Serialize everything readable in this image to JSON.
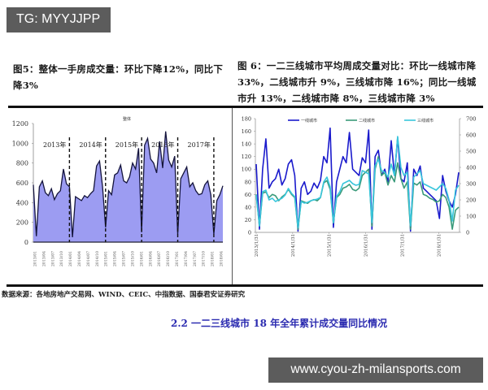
{
  "watermarks": {
    "top_left": "TG: MYYJJPP",
    "bottom_right": "www.cyou-zh-milansports.com"
  },
  "figure5": {
    "title": "图5：整体一手房成交量：环比下降12%，同比下降3%"
  },
  "figure6": {
    "title": "图 6：一二三线城市平均周成交量对比：环比一线城市降33%，二线城市升 9%，三线城市降 16%；同比一线城市升 13%，二线城市降 8%，三线城市降 3%"
  },
  "source_note": "数据来源：各地房地产交易网、WIND、CEIC、中指数据、国泰君安证券研究",
  "section_heading": "2.2 一二三线城市 18 年全年累计成交量同比情况",
  "colors": {
    "fig5_fill": "#9c9cf2",
    "fig5_line": "#14143c",
    "tier1": "#1a1acc",
    "tier2": "#3a9a7a",
    "tier3": "#39c6dc",
    "heading_blue": "#2b2bb0",
    "watermark_bg": "#5c5c5c"
  },
  "chart_data": [
    {
      "type": "area",
      "title": "整体",
      "ylim": [
        0,
        1200
      ],
      "yticks": [
        0,
        200,
        400,
        600,
        800,
        1000,
        1200
      ],
      "xticks": [
        "2013/01",
        "2013/04",
        "2013/07",
        "2013/10",
        "2014/01",
        "2014/04",
        "2014/07",
        "2014/10",
        "2015/01",
        "2015/04",
        "2015/07",
        "2015/10",
        "2016/01",
        "2016/04",
        "2016/07",
        "2016/10",
        "2017/01",
        "2017/04",
        "2017/07",
        "2017/10",
        "2018/01",
        "2018/04"
      ],
      "year_annotations": [
        "2013年",
        "2014年",
        "2015年",
        "2016年",
        "2017年"
      ],
      "year_dividers": [
        "2014/01",
        "2015/01",
        "2016/01",
        "2017/01",
        "2018/01"
      ],
      "x": [
        "2013/01",
        "2013/02",
        "2013/03",
        "2013/04",
        "2013/05",
        "2013/06",
        "2013/07",
        "2013/08",
        "2013/09",
        "2013/10",
        "2013/11",
        "2013/12",
        "2014/01",
        "2014/02",
        "2014/03",
        "2014/04",
        "2014/05",
        "2014/06",
        "2014/07",
        "2014/08",
        "2014/09",
        "2014/10",
        "2014/11",
        "2014/12",
        "2015/01",
        "2015/02",
        "2015/03",
        "2015/04",
        "2015/05",
        "2015/06",
        "2015/07",
        "2015/08",
        "2015/09",
        "2015/10",
        "2015/11",
        "2015/12",
        "2016/01",
        "2016/02",
        "2016/03",
        "2016/04",
        "2016/05",
        "2016/06",
        "2016/07",
        "2016/08",
        "2016/09",
        "2016/10",
        "2016/11",
        "2016/12",
        "2017/01",
        "2017/02",
        "2017/03",
        "2017/04",
        "2017/05",
        "2017/06",
        "2017/07",
        "2017/08",
        "2017/09",
        "2017/10",
        "2017/11",
        "2017/12",
        "2018/01",
        "2018/02",
        "2018/03",
        "2018/04"
      ],
      "values": [
        580,
        60,
        560,
        620,
        500,
        470,
        540,
        430,
        490,
        520,
        740,
        590,
        560,
        50,
        460,
        440,
        420,
        470,
        450,
        490,
        520,
        770,
        820,
        560,
        150,
        520,
        480,
        680,
        700,
        780,
        620,
        600,
        660,
        800,
        740,
        950,
        100,
        980,
        1050,
        840,
        800,
        700,
        1020,
        750,
        1120,
        830,
        760,
        870,
        80,
        640,
        700,
        760,
        560,
        600,
        520,
        480,
        490,
        580,
        620,
        480,
        80,
        420,
        480,
        570
      ]
    },
    {
      "type": "line",
      "title": "",
      "y_left": {
        "ylim": [
          0,
          180
        ],
        "ticks": [
          0,
          20,
          40,
          60,
          80,
          100,
          120,
          140,
          160,
          180
        ]
      },
      "y_right": {
        "ylim": [
          0,
          700
        ],
        "ticks": [
          0,
          100,
          200,
          300,
          400,
          500,
          600,
          700
        ]
      },
      "xticks": [
        "2013/1/31",
        "2014/1/31",
        "2015/1/31",
        "2016/1/31",
        "2017/1/31",
        "2018/1/31"
      ],
      "legend": [
        "一线城市",
        "二线城市",
        "三线城市"
      ],
      "legend_position": "top",
      "x_index": [
        0,
        1,
        2,
        3,
        4,
        5,
        6,
        7,
        8,
        9,
        10,
        11,
        12,
        13,
        14,
        15,
        16,
        17,
        18,
        19,
        20,
        21,
        22,
        23,
        24,
        25,
        26,
        27,
        28,
        29,
        30,
        31,
        32,
        33,
        34,
        35,
        36,
        37,
        38,
        39,
        40,
        41,
        42,
        43,
        44,
        45,
        46,
        47,
        48,
        49,
        50,
        51,
        52,
        53,
        54,
        55,
        56,
        57,
        58,
        59,
        60,
        61,
        62,
        63
      ],
      "series": [
        {
          "name": "一线城市",
          "axis": "left",
          "values": [
            108,
            5,
            100,
            148,
            70,
            80,
            85,
            100,
            75,
            85,
            108,
            115,
            90,
            2,
            70,
            80,
            60,
            65,
            78,
            70,
            82,
            120,
            110,
            165,
            8,
            80,
            100,
            120,
            110,
            158,
            100,
            95,
            90,
            118,
            110,
            162,
            5,
            120,
            130,
            90,
            100,
            80,
            145,
            90,
            150,
            85,
            80,
            110,
            2,
            100,
            90,
            105,
            70,
            65,
            60,
            55,
            50,
            22,
            90,
            65,
            50,
            40,
            60,
            95
          ]
        },
        {
          "name": "二线城市",
          "axis": "left",
          "values": [
            60,
            10,
            62,
            64,
            55,
            60,
            58,
            50,
            56,
            60,
            68,
            60,
            55,
            5,
            50,
            48,
            46,
            50,
            52,
            50,
            55,
            78,
            82,
            68,
            15,
            55,
            60,
            70,
            72,
            76,
            68,
            66,
            70,
            90,
            95,
            100,
            10,
            100,
            120,
            90,
            95,
            75,
            90,
            80,
            110,
            85,
            70,
            80,
            5,
            78,
            75,
            80,
            60,
            58,
            54,
            52,
            48,
            50,
            60,
            55,
            40,
            5,
            35,
            40
          ]
        },
        {
          "name": "三线城市",
          "axis": "right",
          "values": [
            230,
            40,
            250,
            260,
            200,
            210,
            190,
            200,
            210,
            230,
            270,
            240,
            220,
            30,
            190,
            180,
            185,
            195,
            200,
            205,
            215,
            310,
            340,
            280,
            60,
            220,
            250,
            300,
            310,
            320,
            300,
            290,
            295,
            380,
            370,
            360,
            60,
            410,
            450,
            380,
            370,
            340,
            420,
            350,
            590,
            400,
            350,
            370,
            40,
            340,
            360,
            380,
            300,
            290,
            280,
            270,
            260,
            280,
            300,
            270,
            200,
            70,
            260,
            290
          ]
        }
      ]
    }
  ]
}
